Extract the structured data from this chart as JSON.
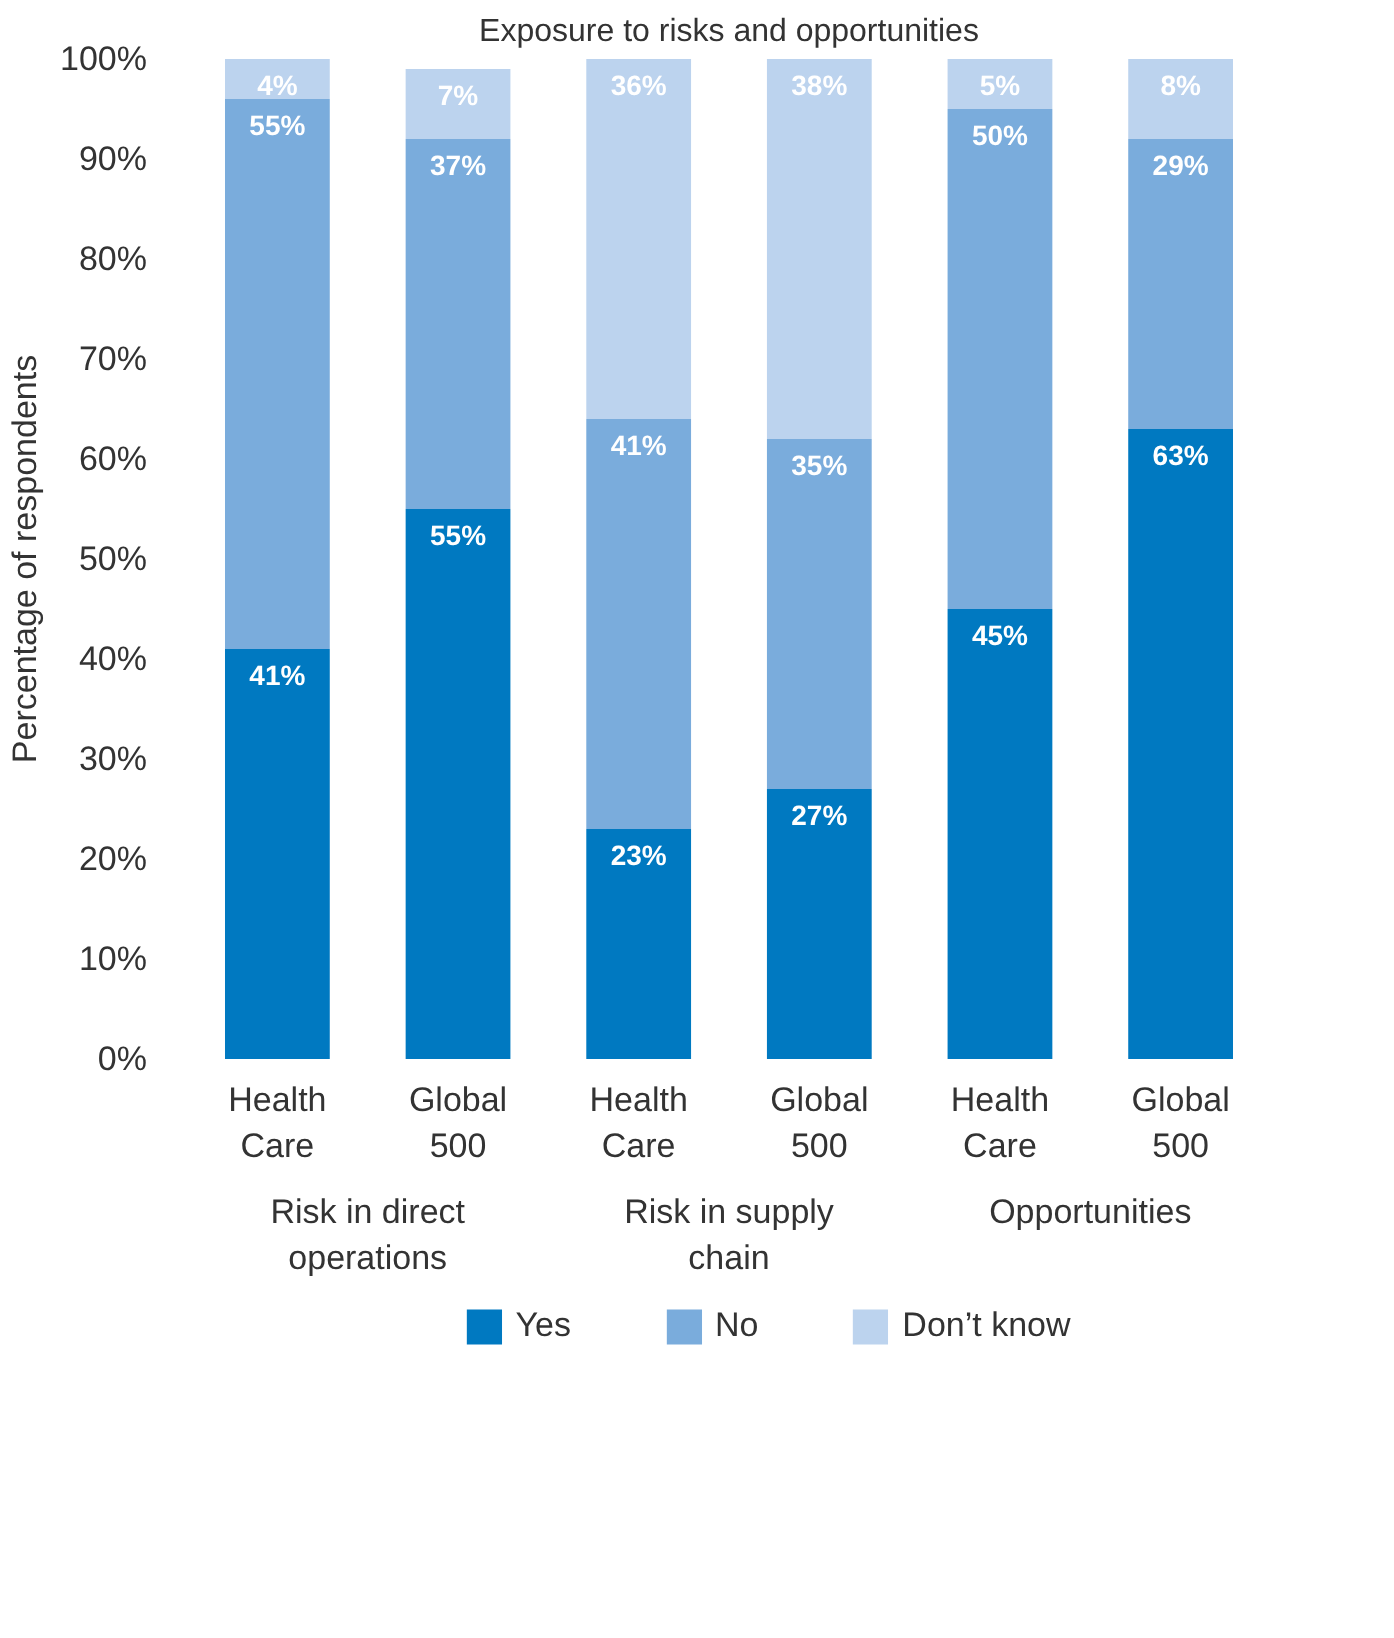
{
  "chart_data": {
    "type": "bar",
    "stacked": true,
    "title": "Exposure to risks and opportunities",
    "ylabel": "Percentage of respondents",
    "categories": [
      "Health Care",
      "Global 500",
      "Health Care",
      "Global 500",
      "Health Care",
      "Global 500"
    ],
    "annotations": [
      "Risk in direct operations",
      "Risk in supply chain",
      "Opportunities"
    ],
    "series": [
      {
        "name": "Yes",
        "color": "#0079c1",
        "values": [
          41,
          55,
          23,
          27,
          45,
          63
        ],
        "value_labels": [
          "41%",
          "55%",
          "23%",
          "27%",
          "45%",
          "63%"
        ]
      },
      {
        "name": "No",
        "color": "#7aacdc",
        "values": [
          55,
          37,
          41,
          35,
          50,
          29
        ],
        "value_labels": [
          "55%",
          "37%",
          "41%",
          "35%",
          "50%",
          "29%"
        ]
      },
      {
        "name": "Don’t know",
        "color": "#bcd3ee",
        "values": [
          4,
          7,
          36,
          38,
          5,
          8
        ],
        "value_labels": [
          "4%",
          "7%",
          "36%",
          "38%",
          "5%",
          "8%"
        ]
      }
    ],
    "ylim": [
      0,
      100
    ],
    "yticks": [
      {
        "value": 0,
        "label": "0%"
      },
      {
        "value": 10,
        "label": "10%"
      },
      {
        "value": 20,
        "label": "20%"
      },
      {
        "value": 30,
        "label": "30%"
      },
      {
        "value": 40,
        "label": "40%"
      },
      {
        "value": 50,
        "label": "50%"
      },
      {
        "value": 60,
        "label": "60%"
      },
      {
        "value": 70,
        "label": "70%"
      },
      {
        "value": 80,
        "label": "80%"
      },
      {
        "value": 90,
        "label": "90%"
      },
      {
        "value": 100,
        "label": "100%"
      }
    ],
    "grid": false,
    "legend": "bottom"
  }
}
